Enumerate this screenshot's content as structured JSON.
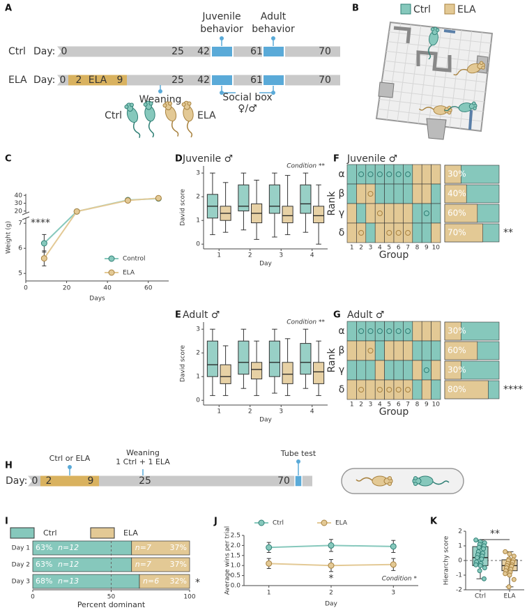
{
  "panel_labels": [
    "A",
    "B",
    "C",
    "D",
    "E",
    "F",
    "G",
    "H",
    "I",
    "J",
    "K"
  ],
  "timeline_a": {
    "ctrl_row": {
      "label": "Ctrl",
      "day_label": "Day:",
      "days": [
        0,
        25,
        42,
        61,
        70
      ]
    },
    "ela_row": {
      "label": "ELA",
      "day_label": "Day:",
      "days": [
        0,
        2,
        9,
        25,
        42,
        61,
        70
      ],
      "ela_label": "ELA"
    },
    "juvenile_label": [
      "Juvenile",
      "behavior"
    ],
    "adult_label": [
      "Adult",
      "behavior"
    ],
    "weaning": "Weaning",
    "social_box": [
      "Social box",
      "♀/♂"
    ],
    "mice_legend": [
      "Ctrl",
      "ELA"
    ]
  },
  "arena_legend": [
    "Ctrl",
    "ELA"
  ],
  "timeline_h": {
    "day_label": "Day:",
    "days": [
      0,
      2,
      9,
      25,
      70
    ],
    "condition": "Ctrl or ELA",
    "weaning": [
      "Weaning",
      "1 Ctrl + 1 ELA"
    ],
    "tube_test": "Tube test"
  },
  "chart_data": [
    {
      "type": "line",
      "xlabel": "Days",
      "ylabel": "Weight (g)",
      "xlim": [
        0,
        70
      ],
      "xticks": [
        0,
        20,
        40,
        60
      ],
      "ylim": [
        4.7,
        42
      ],
      "ybreak": [
        7.2,
        18
      ],
      "yticks": [
        5,
        6,
        7,
        20,
        30,
        40
      ],
      "annotation": "****",
      "legend": "lower right",
      "series": [
        {
          "name": "Control",
          "color": "#86c8bc",
          "edge": "#2f7f75",
          "x": [
            9,
            25,
            50,
            65
          ],
          "values": [
            6.2,
            19.5,
            34,
            36
          ],
          "errors": [
            0.35,
            1,
            2,
            2
          ]
        },
        {
          "name": "ELA",
          "color": "#e3c995",
          "edge": "#a8823f",
          "x": [
            9,
            25,
            50,
            65
          ],
          "values": [
            5.6,
            19.5,
            33.5,
            36.5
          ],
          "errors": [
            0.3,
            1,
            2,
            2
          ]
        }
      ]
    },
    {
      "type": "box",
      "title": "Juvenile ♂",
      "annotation": "Condition **",
      "xlabel": "Day",
      "ylabel": "David score",
      "categories": [
        "1",
        "2",
        "3",
        "4"
      ],
      "ylim": [
        -0.2,
        3.3
      ],
      "yticks": [
        0,
        1,
        2,
        3
      ],
      "series": [
        {
          "color": "#86c8bc",
          "edge": "#2f7f75",
          "boxes": [
            [
              0.4,
              1.1,
              1.6,
              2.1,
              3.0
            ],
            [
              0.6,
              1.4,
              1.6,
              2.5,
              3.0
            ],
            [
              0.3,
              1.3,
              1.6,
              2.5,
              3.0
            ],
            [
              0.5,
              1.3,
              1.7,
              2.5,
              3.0
            ]
          ]
        },
        {
          "color": "#e3c995",
          "edge": "#a8823f",
          "boxes": [
            [
              0.5,
              1.0,
              1.3,
              1.6,
              2.6
            ],
            [
              0.2,
              0.9,
              1.3,
              1.7,
              2.7
            ],
            [
              0.4,
              0.9,
              1.2,
              1.6,
              2.9
            ],
            [
              0.0,
              0.9,
              1.2,
              1.6,
              2.5
            ]
          ]
        }
      ]
    },
    {
      "type": "box",
      "title": "Adult ♂",
      "annotation": "Condition **",
      "xlabel": "Day",
      "ylabel": "David score",
      "categories": [
        "1",
        "2",
        "3",
        "4"
      ],
      "ylim": [
        -0.2,
        3.3
      ],
      "yticks": [
        0,
        1,
        2,
        3
      ],
      "series": [
        {
          "color": "#86c8bc",
          "edge": "#2f7f75",
          "boxes": [
            [
              0.2,
              1.0,
              1.5,
              2.5,
              3.0
            ],
            [
              0.5,
              1.1,
              1.6,
              2.5,
              3.0
            ],
            [
              0.3,
              1.0,
              1.6,
              2.5,
              3.0
            ],
            [
              0.5,
              1.1,
              1.6,
              2.4,
              3.0
            ]
          ]
        },
        {
          "color": "#e3c995",
          "edge": "#a8823f",
          "boxes": [
            [
              0.2,
              0.7,
              1.0,
              1.5,
              2.3
            ],
            [
              0.2,
              0.9,
              1.3,
              1.6,
              2.5
            ],
            [
              0.2,
              0.7,
              1.1,
              1.6,
              2.6
            ],
            [
              0.2,
              0.7,
              1.2,
              1.6,
              2.5
            ]
          ]
        }
      ]
    },
    {
      "type": "rank_grid",
      "title": "Juvenile ♂",
      "ylabel": "Rank",
      "xlabel": "Group",
      "rows": [
        "α",
        "β",
        "γ",
        "δ"
      ],
      "categories": [
        "1",
        "2",
        "3",
        "4",
        "5",
        "6",
        "7",
        "8",
        "9",
        "10"
      ],
      "series": [
        {
          "color": "#86c8bc",
          "edge": "#2f7f75"
        },
        {
          "color": "#e3c995",
          "edge": "#a8823f"
        }
      ],
      "cells": [
        [
          0,
          0,
          0,
          0,
          0,
          0,
          0,
          1,
          1,
          1
        ],
        [
          0,
          1,
          1,
          0,
          0,
          0,
          0,
          1,
          1,
          0
        ],
        [
          1,
          0,
          1,
          1,
          1,
          1,
          1,
          0,
          0,
          0
        ],
        [
          1,
          1,
          0,
          1,
          1,
          1,
          1,
          0,
          0,
          1
        ]
      ],
      "dots": [
        [
          0,
          1,
          1,
          1,
          1,
          1,
          1,
          0,
          0,
          0
        ],
        [
          0,
          0,
          1,
          0,
          0,
          0,
          0,
          0,
          0,
          0
        ],
        [
          0,
          0,
          0,
          1,
          0,
          0,
          0,
          0,
          1,
          0
        ],
        [
          0,
          1,
          0,
          0,
          1,
          1,
          1,
          0,
          0,
          0
        ]
      ],
      "percent": {
        "values": [
          30,
          40,
          60,
          70
        ],
        "value_labels": [
          "30%",
          "40%",
          "60%",
          "70%"
        ],
        "xlim": [
          0,
          100
        ]
      },
      "significance": "**"
    },
    {
      "type": "rank_grid",
      "title": "Adult ♂",
      "ylabel": "Rank",
      "xlabel": "Group",
      "rows": [
        "α",
        "β",
        "γ",
        "δ"
      ],
      "categories": [
        "1",
        "2",
        "3",
        "4",
        "5",
        "6",
        "7",
        "8",
        "9",
        "10"
      ],
      "series": [
        {
          "color": "#86c8bc",
          "edge": "#2f7f75"
        },
        {
          "color": "#e3c995",
          "edge": "#a8823f"
        }
      ],
      "cells": [
        [
          0,
          0,
          0,
          0,
          0,
          0,
          0,
          1,
          1,
          1
        ],
        [
          1,
          1,
          1,
          0,
          1,
          1,
          1,
          0,
          0,
          0
        ],
        [
          0,
          0,
          0,
          1,
          0,
          0,
          0,
          1,
          0,
          1
        ],
        [
          1,
          1,
          1,
          1,
          1,
          1,
          1,
          0,
          1,
          0
        ]
      ],
      "dots": [
        [
          0,
          1,
          1,
          1,
          1,
          1,
          1,
          0,
          0,
          0
        ],
        [
          0,
          0,
          1,
          0,
          0,
          0,
          0,
          0,
          0,
          0
        ],
        [
          0,
          0,
          0,
          0,
          0,
          0,
          0,
          0,
          1,
          0
        ],
        [
          0,
          1,
          0,
          1,
          1,
          1,
          1,
          0,
          0,
          0
        ]
      ],
      "percent": {
        "values": [
          30,
          60,
          30,
          80
        ],
        "value_labels": [
          "30%",
          "60%",
          "30%",
          "80%"
        ],
        "xlim": [
          0,
          100
        ]
      },
      "significance": "****"
    },
    {
      "type": "stacked_barh",
      "legend": "top",
      "categories": [
        "Day 1",
        "Day 2",
        "Day 3"
      ],
      "series": [
        {
          "name": "Ctrl",
          "color": "#86c8bc",
          "edge": "#2f7f75",
          "values": [
            63,
            63,
            68
          ],
          "value_labels": [
            "63%",
            "63%",
            "68%"
          ],
          "n_labels": [
            "n=12",
            "n=12",
            "n=13"
          ]
        },
        {
          "name": "ELA",
          "color": "#e3c995",
          "edge": "#a8823f",
          "values": [
            37,
            37,
            32
          ],
          "value_labels": [
            "37%",
            "37%",
            "32%"
          ],
          "n_labels": [
            "n=7",
            "n=7",
            "n=6"
          ]
        }
      ],
      "xlim": [
        0,
        100
      ],
      "xticks": [
        0,
        50,
        100
      ],
      "xlabel": "Percent dominant",
      "refline": 50,
      "significance": "*"
    },
    {
      "type": "line",
      "legend": "top",
      "x": [
        1,
        2,
        3
      ],
      "xlim": [
        0.6,
        3.4
      ],
      "xticks": [
        1,
        2,
        3
      ],
      "ylim": [
        0,
        2.5
      ],
      "yticks": [
        {
          "value": 0,
          "label": "0.0"
        },
        0.5,
        {
          "value": 1,
          "label": "1.0"
        },
        1.5,
        {
          "value": 2,
          "label": "2.0"
        },
        2.5
      ],
      "xlabel": "Day",
      "ylabel": "Average wins per trial",
      "annotation": "Condition *",
      "significance": "*",
      "series": [
        {
          "name": "Ctrl",
          "color": "#86c8bc",
          "edge": "#2f7f75",
          "values": [
            1.9,
            2.0,
            1.95
          ],
          "errors": [
            0.25,
            0.3,
            0.3
          ]
        },
        {
          "name": "ELA",
          "color": "#e3c995",
          "edge": "#a8823f",
          "values": [
            1.1,
            1.0,
            1.05
          ],
          "errors": [
            0.25,
            0.3,
            0.3
          ]
        }
      ]
    },
    {
      "type": "box",
      "categories": [
        "Ctrl",
        "ELA"
      ],
      "ylim": [
        -2,
        2
      ],
      "yticks": [
        -2,
        -1,
        0,
        1,
        2
      ],
      "ylabel": "Hierarchy score",
      "refline": 0,
      "significance": "**",
      "colors": [
        "#86c8bc",
        "#e3c995"
      ],
      "edges": [
        "#2f7f75",
        "#a8823f"
      ],
      "boxes": [
        [
          -1.25,
          -0.35,
          0.2,
          0.95,
          1.4
        ],
        [
          -1.8,
          -0.7,
          -0.35,
          0.05,
          0.6
        ]
      ],
      "points": [
        [
          1.4,
          1.3,
          1.2,
          1.1,
          1.0,
          0.9,
          0.8,
          0.6,
          0.5,
          0.4,
          0.3,
          0.2,
          0.1,
          -0.1,
          -0.2,
          -0.3,
          -0.35,
          -0.5,
          -0.7,
          -1.25
        ],
        [
          0.6,
          0.45,
          0.3,
          0.1,
          0.05,
          0,
          -0.1,
          -0.2,
          -0.3,
          -0.35,
          -0.4,
          -0.5,
          -0.6,
          -0.7,
          -0.8,
          -0.9,
          -1.0,
          -1.3,
          -1.8
        ]
      ]
    }
  ]
}
